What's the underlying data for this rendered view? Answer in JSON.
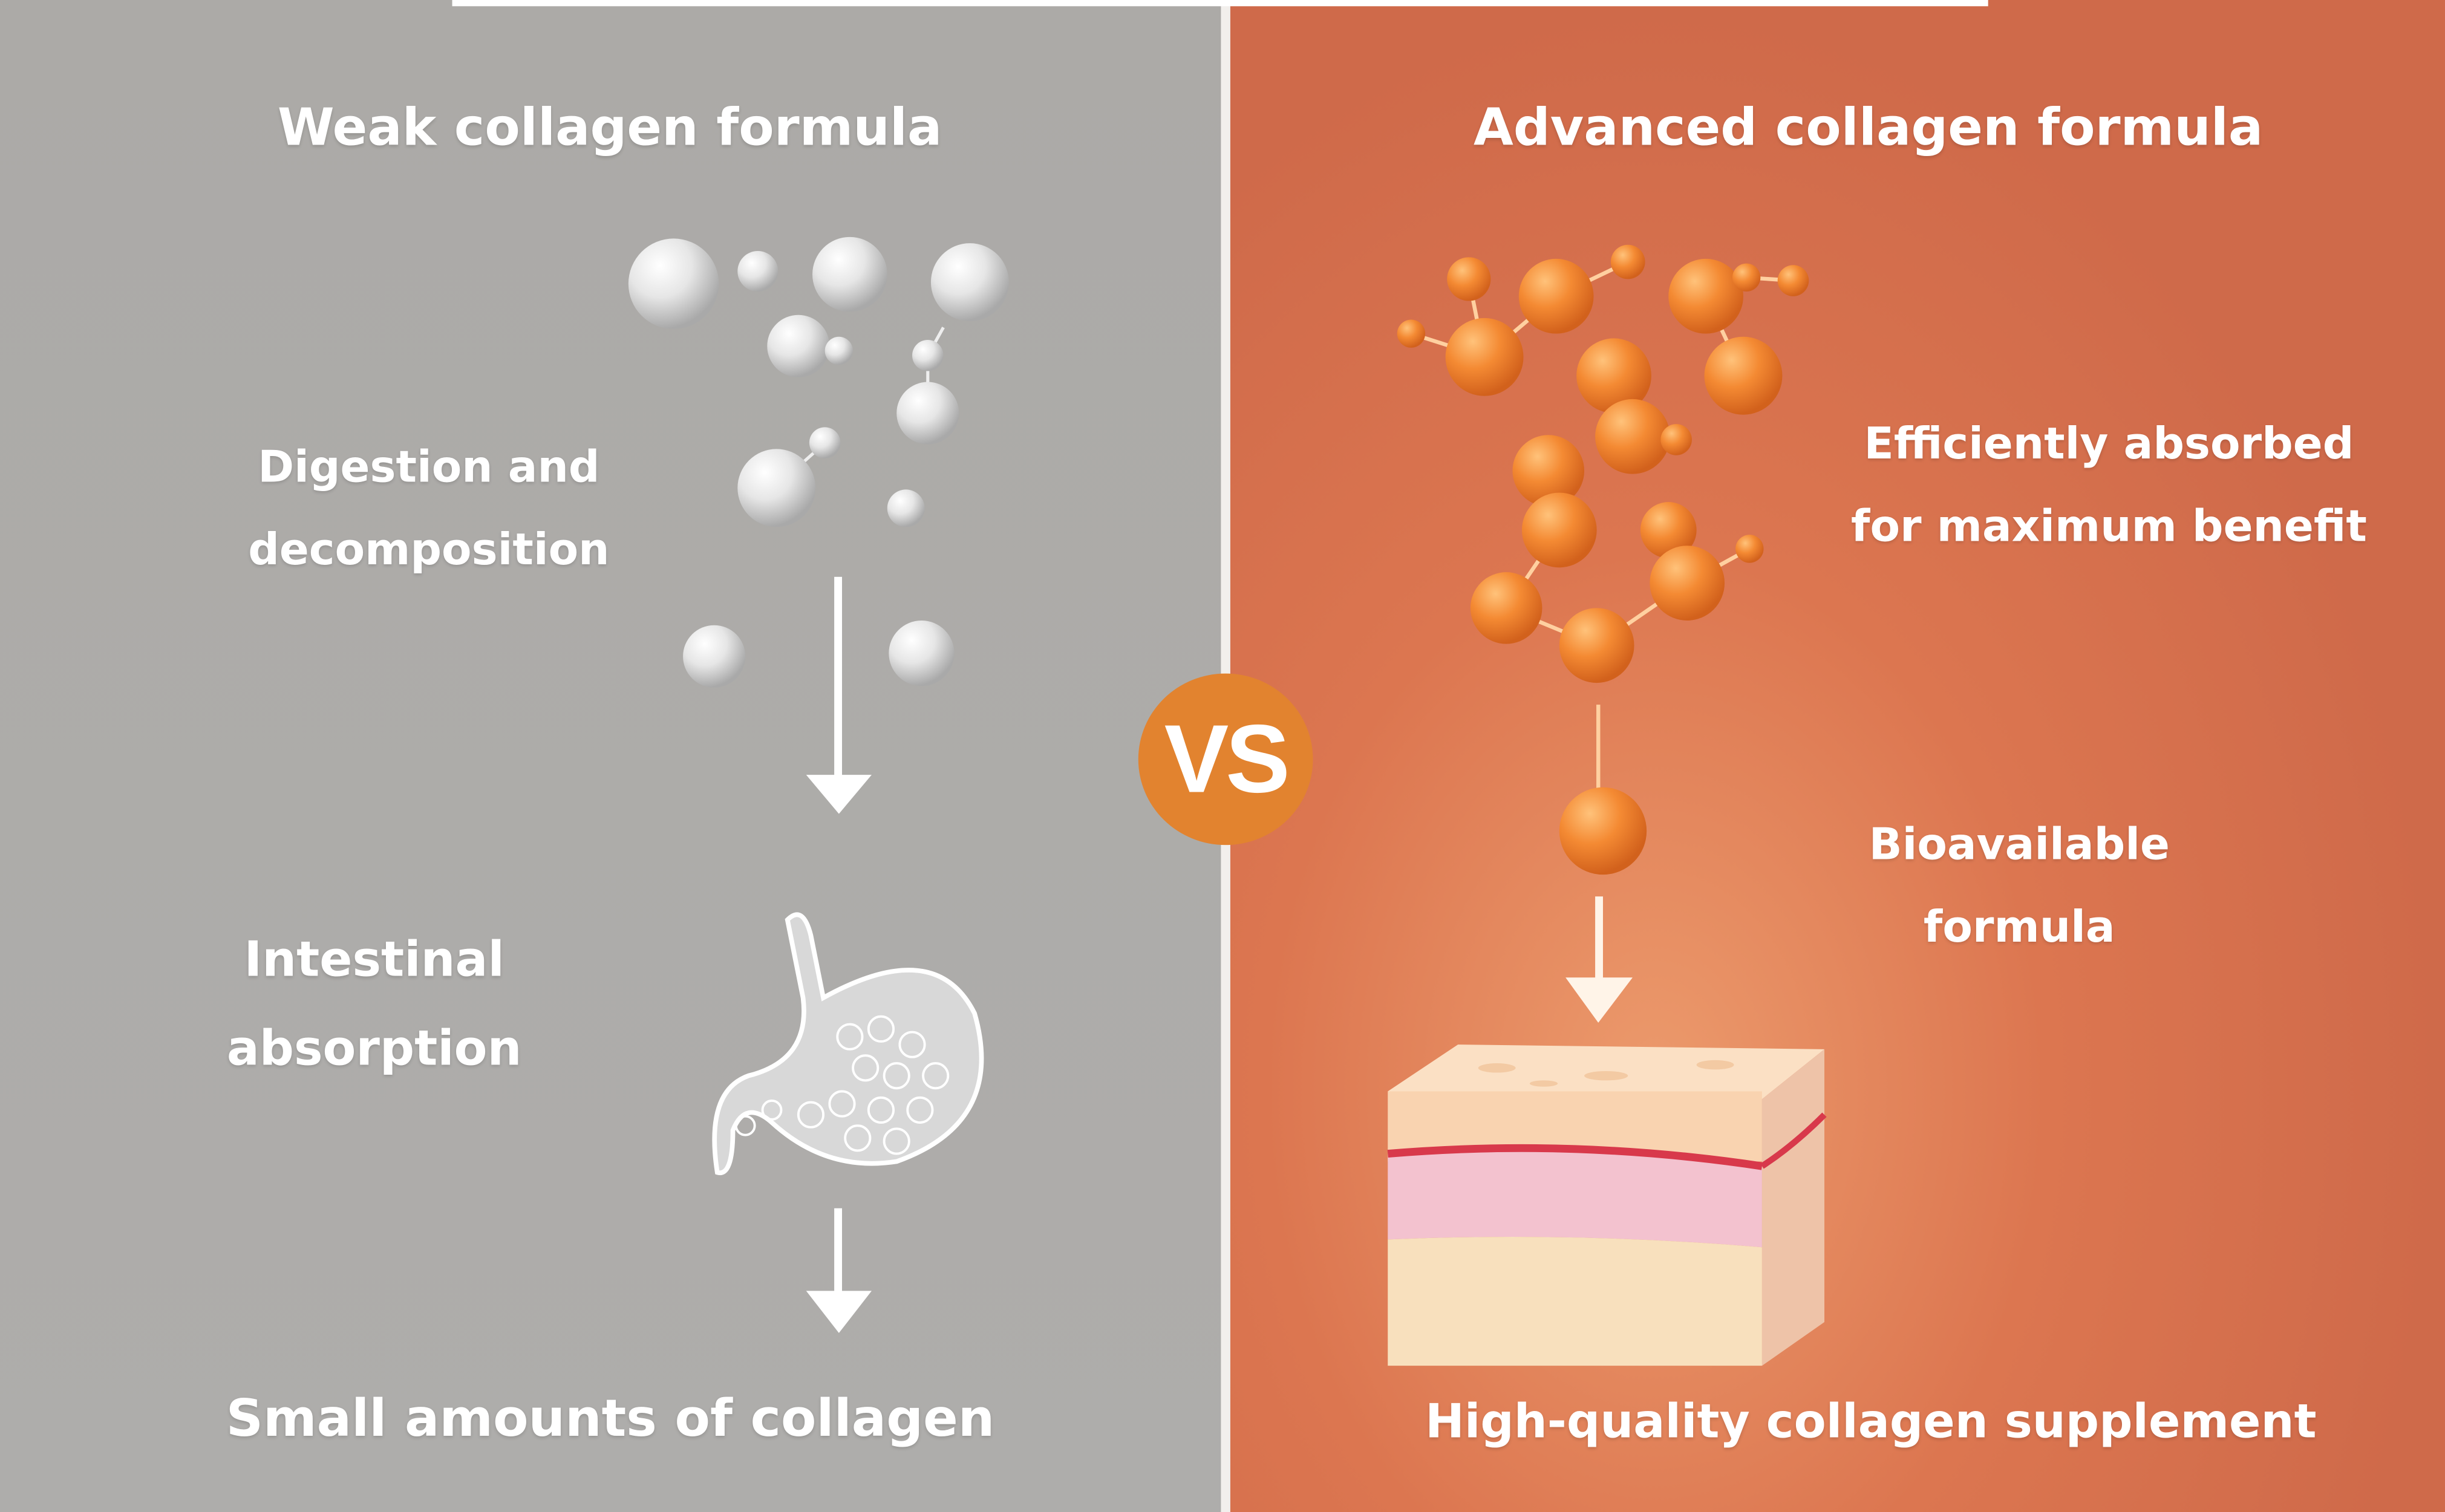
{
  "left": {
    "title": "Weak collagen formula",
    "step1": [
      "Digestion and",
      "decomposition"
    ],
    "step2": [
      "Intestinal",
      "absorption"
    ],
    "result": "Small amounts of collagen",
    "color": "#acaaa7"
  },
  "right": {
    "title": "Advanced collagen formula",
    "step1": [
      "Efficiently absorbed",
      "for maximum benefit"
    ],
    "step2": [
      "Bioavailable",
      "formula"
    ],
    "result": "High-quality collagen supplement",
    "color": "#cf6a4a"
  },
  "vs": {
    "label": "VS",
    "color": "#e2832f"
  }
}
